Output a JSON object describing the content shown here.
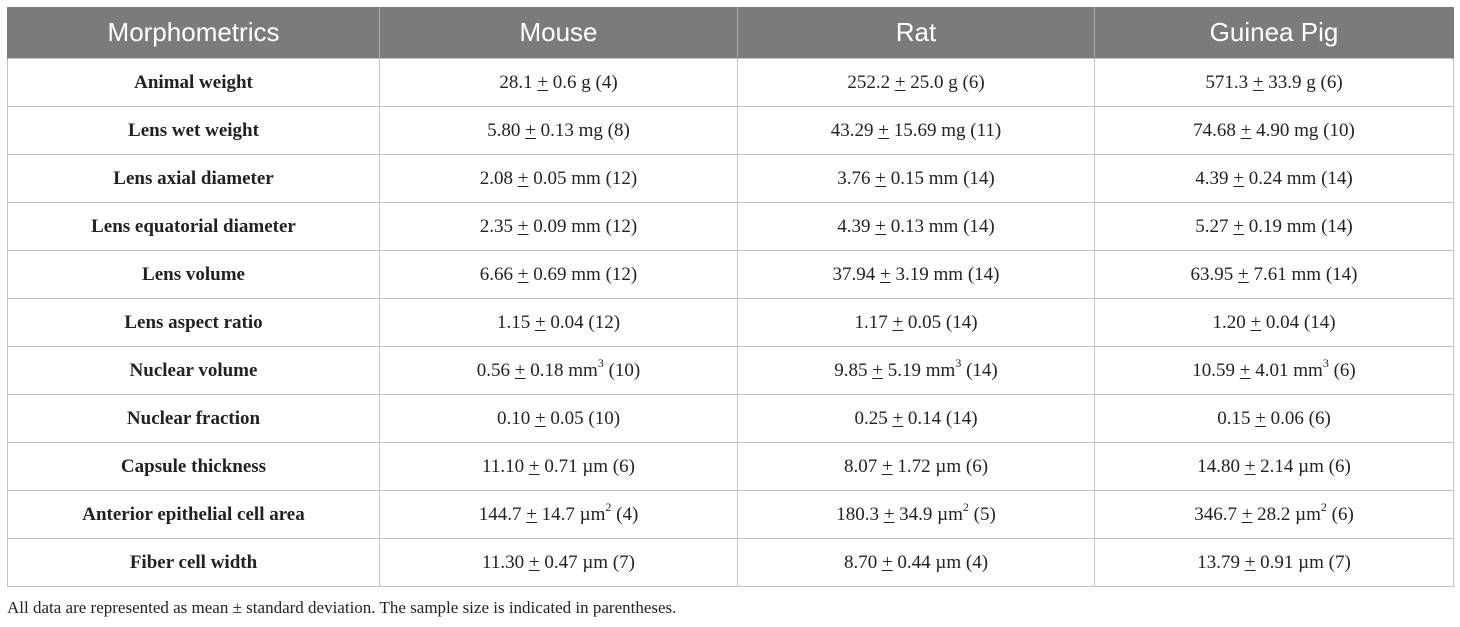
{
  "table": {
    "headers": [
      "Morphometrics",
      "Mouse",
      "Rat",
      "Guinea Pig"
    ],
    "rows": [
      {
        "label": "Animal weight",
        "cells": [
          {
            "mean": "28.1",
            "sep": "+",
            "sd": "0.6 g",
            "sup": "",
            "n": "(4)"
          },
          {
            "mean": "252.2",
            "sep": "+",
            "sd": "25.0 g",
            "sup": "",
            "n": "(6)"
          },
          {
            "mean": "571.3",
            "sep": "+",
            "sd": "33.9 g",
            "sup": "",
            "n": "(6)"
          }
        ]
      },
      {
        "label": "Lens wet weight",
        "cells": [
          {
            "mean": "5.80",
            "sep": "+",
            "sd": "0.13 mg",
            "sup": "",
            "n": "(8)"
          },
          {
            "mean": "43.29",
            "sep": "+",
            "sd": "15.69 mg",
            "sup": "",
            "n": "(11)"
          },
          {
            "mean": "74.68",
            "sep": "+",
            "sd": "4.90 mg",
            "sup": "",
            "n": "(10)"
          }
        ]
      },
      {
        "label": "Lens axial diameter",
        "cells": [
          {
            "mean": "2.08",
            "sep": "+",
            "sd": "0.05 mm",
            "sup": "",
            "n": "(12)"
          },
          {
            "mean": "3.76",
            "sep": "+",
            "sd": "0.15 mm",
            "sup": "",
            "n": "(14)"
          },
          {
            "mean": "4.39",
            "sep": "+",
            "sd": "0.24 mm",
            "sup": "",
            "n": "(14)"
          }
        ]
      },
      {
        "label": "Lens equatorial diameter",
        "cells": [
          {
            "mean": "2.35",
            "sep": "+",
            "sd": "0.09 mm",
            "sup": "",
            "n": "(12)"
          },
          {
            "mean": "4.39",
            "sep": "+",
            "sd": "0.13 mm",
            "sup": "",
            "n": "(14)"
          },
          {
            "mean": "5.27",
            "sep": "+",
            "sd": "0.19 mm",
            "sup": "",
            "n": "(14)"
          }
        ]
      },
      {
        "label": "Lens volume",
        "cells": [
          {
            "mean": "6.66",
            "sep": "+",
            "sd": "0.69 mm",
            "sup": "",
            "n": "(12)"
          },
          {
            "mean": "37.94",
            "sep": "+",
            "sd": "3.19 mm",
            "sup": "",
            "n": "(14)"
          },
          {
            "mean": "63.95",
            "sep": "+",
            "sd": "7.61 mm",
            "sup": "",
            "n": "(14)"
          }
        ]
      },
      {
        "label": "Lens aspect ratio",
        "cells": [
          {
            "mean": "1.15",
            "sep": "+",
            "sd": "0.04",
            "sup": "",
            "n": "(12)"
          },
          {
            "mean": "1.17",
            "sep": "+",
            "sd": "0.05",
            "sup": "",
            "n": "(14)"
          },
          {
            "mean": "1.20",
            "sep": "+",
            "sd": "0.04",
            "sup": "",
            "n": "(14)"
          }
        ]
      },
      {
        "label": "Nuclear volume",
        "cells": [
          {
            "mean": "0.56",
            "sep": "+",
            "sd": "0.18 mm",
            "sup": "3",
            "n": "(10)"
          },
          {
            "mean": "9.85",
            "sep": "+",
            "sd": "5.19 mm",
            "sup": "3",
            "n": "(14)"
          },
          {
            "mean": "10.59",
            "sep": "+",
            "sd": "4.01 mm",
            "sup": "3",
            "n": "(6)"
          }
        ]
      },
      {
        "label": "Nuclear fraction",
        "cells": [
          {
            "mean": "0.10",
            "sep": "+",
            "sd": "0.05",
            "sup": "",
            "n": "(10)"
          },
          {
            "mean": "0.25",
            "sep": "+",
            "sd": "0.14",
            "sup": "",
            "n": "(14)"
          },
          {
            "mean": "0.15",
            "sep": "+",
            "sd": "0.06",
            "sup": "",
            "n": "(6)"
          }
        ]
      },
      {
        "label": "Capsule thickness",
        "cells": [
          {
            "mean": "11.10",
            "sep": "+",
            "sd": "0.71 µm",
            "sup": "",
            "n": "(6)"
          },
          {
            "mean": "8.07",
            "sep": "+",
            "sd": "1.72 µm",
            "sup": "",
            "n": "(6)"
          },
          {
            "mean": "14.80",
            "sep": "+",
            "sd": "2.14 µm",
            "sup": "",
            "n": "(6)"
          }
        ]
      },
      {
        "label": "Anterior epithelial cell area",
        "cells": [
          {
            "mean": "144.7",
            "sep": "+",
            "sd": "14.7 µm",
            "sup": "2",
            "n": "(4)"
          },
          {
            "mean": "180.3",
            "sep": "+",
            "sd": "34.9 µm",
            "sup": "2",
            "n": "(5)"
          },
          {
            "mean": "346.7",
            "sep": "+",
            "sd": "28.2 µm",
            "sup": "2",
            "n": "(6)"
          }
        ]
      },
      {
        "label": "Fiber cell width",
        "cells": [
          {
            "mean": "11.30",
            "sep": "+",
            "sd": "0.47 µm",
            "sup": "",
            "n": "(7)"
          },
          {
            "mean": "8.70",
            "sep": "+",
            "sd": "0.44 µm",
            "sup": "",
            "n": "(4)"
          },
          {
            "mean": "13.79",
            "sep": "+",
            "sd": "0.91 µm",
            "sup": "",
            "n": "(7)"
          }
        ]
      }
    ]
  },
  "footnote": "All data are represented as mean ± standard deviation. The sample size is indicated in parentheses.",
  "colors": {
    "header_bg": "#7b7b7b",
    "header_text": "#ffffff",
    "grid_line": "#c4c4c4",
    "body_text": "#222222"
  }
}
